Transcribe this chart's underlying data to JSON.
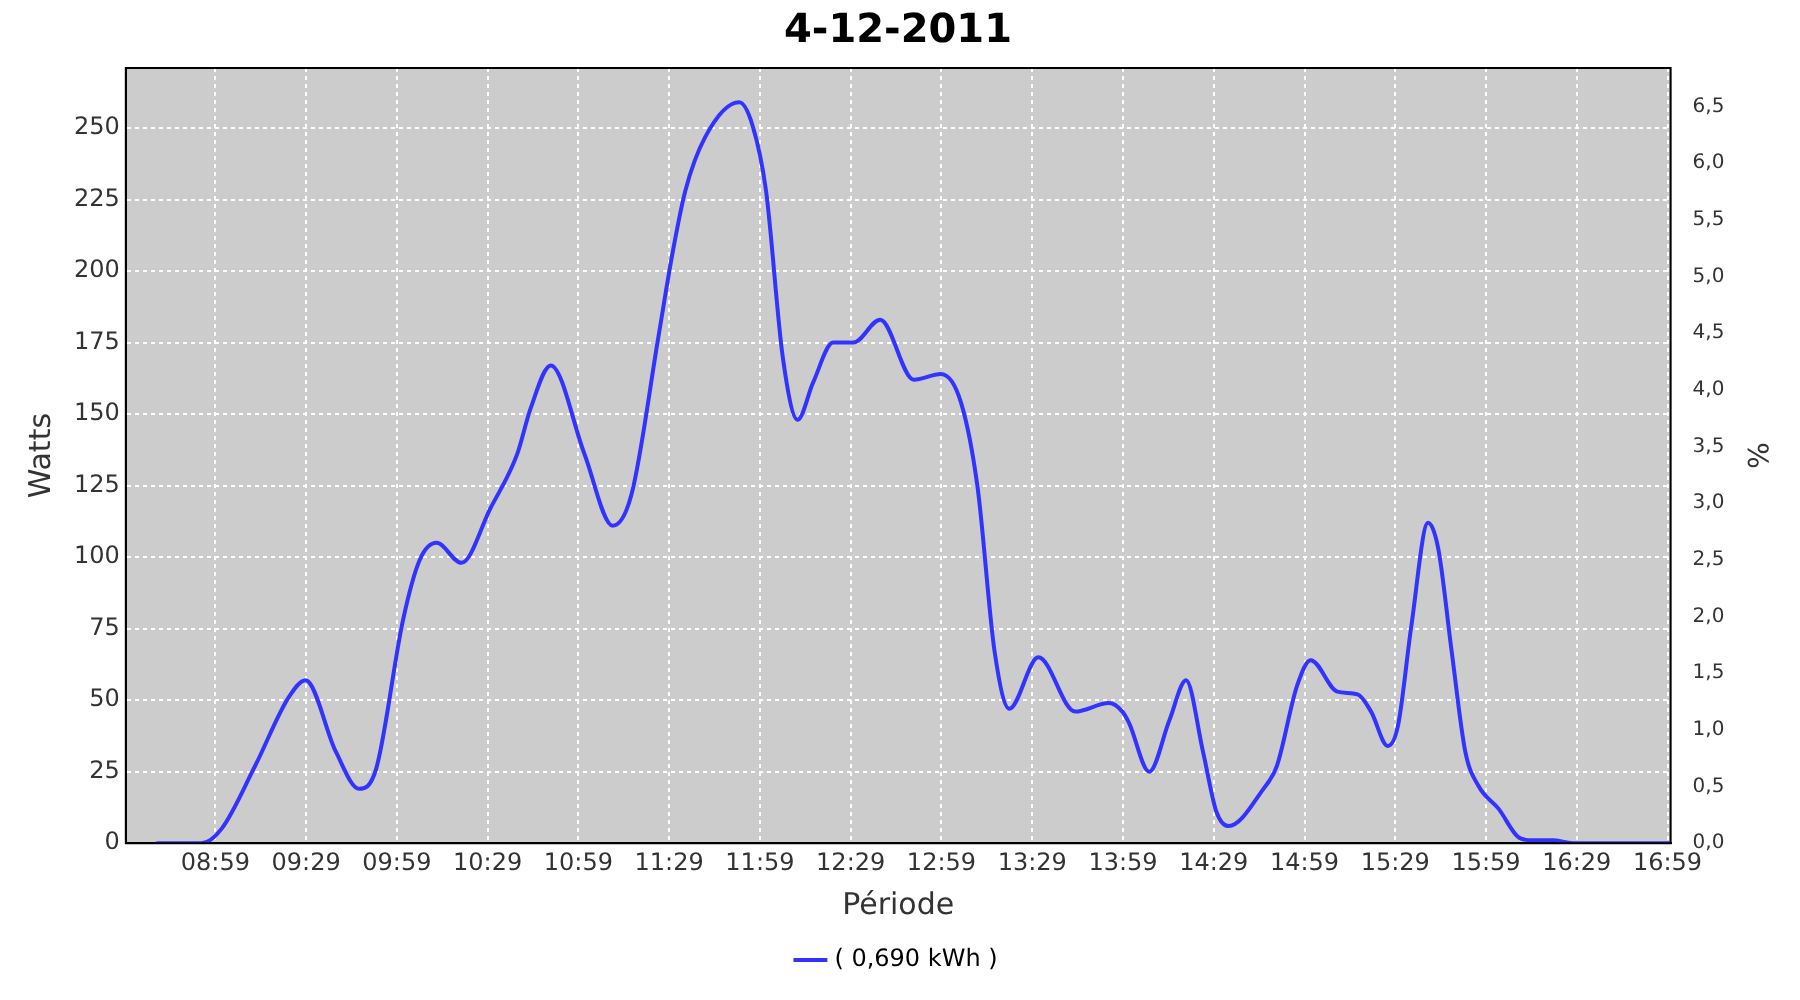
{
  "chart_data": {
    "type": "line",
    "title": "4-12-2011",
    "xlabel": "Période",
    "ylabel": "Watts",
    "y2label": "%",
    "x": [
      8.664,
      8.906,
      9.017,
      9.202,
      9.387,
      9.48,
      9.647,
      9.776,
      9.869,
      10.017,
      10.109,
      10.202,
      10.339,
      10.498,
      10.646,
      10.72,
      10.831,
      11.017,
      11.172,
      11.276,
      11.424,
      11.498,
      11.572,
      11.683,
      11.869,
      11.942,
      12.017,
      12.109,
      12.191,
      12.276,
      12.387,
      12.498,
      12.646,
      12.831,
      12.98,
      13.091,
      13.183,
      13.276,
      13.357,
      13.517,
      13.72,
      13.906,
      13.98,
      14.017,
      14.128,
      14.239,
      14.331,
      14.424,
      14.498,
      14.565,
      14.757,
      14.831,
      14.942,
      15.017,
      15.164,
      15.276,
      15.35,
      15.442,
      15.498,
      15.572,
      15.664,
      15.72,
      15.794,
      15.869,
      15.942,
      16.053,
      16.164,
      16.239,
      16.35,
      16.461,
      16.99
    ],
    "series": [
      {
        "name": "( 0,690 kWh )",
        "color": "#3333ff",
        "values": [
          0,
          0,
          5,
          27,
          51,
          57,
          32,
          19,
          26,
          78,
          99,
          105,
          98,
          117,
          136,
          152,
          167,
          136,
          111,
          122,
          177,
          205,
          228,
          247,
          259,
          251,
          228,
          170,
          148,
          161,
          175,
          175,
          183,
          162,
          164,
          154,
          124,
          67,
          47,
          65,
          46,
          49,
          46,
          42,
          25,
          43,
          57,
          32,
          11,
          6,
          19,
          27,
          55,
          64,
          53,
          52,
          46,
          34,
          41,
          76,
          112,
          103,
          67,
          32,
          20,
          12,
          2,
          1,
          1,
          0,
          0
        ]
      }
    ],
    "xlim": [
      8.49,
      17.0
    ],
    "xticks": [
      {
        "value": 8.9833,
        "label": "08:59"
      },
      {
        "value": 9.4833,
        "label": "09:29"
      },
      {
        "value": 9.9833,
        "label": "09:59"
      },
      {
        "value": 10.4833,
        "label": "10:29"
      },
      {
        "value": 10.9833,
        "label": "10:59"
      },
      {
        "value": 11.4833,
        "label": "11:29"
      },
      {
        "value": 11.9833,
        "label": "11:59"
      },
      {
        "value": 12.4833,
        "label": "12:29"
      },
      {
        "value": 12.9833,
        "label": "12:59"
      },
      {
        "value": 13.4833,
        "label": "13:29"
      },
      {
        "value": 13.9833,
        "label": "13:59"
      },
      {
        "value": 14.4833,
        "label": "14:29"
      },
      {
        "value": 14.9833,
        "label": "14:59"
      },
      {
        "value": 15.4833,
        "label": "15:29"
      },
      {
        "value": 15.9833,
        "label": "15:59"
      },
      {
        "value": 16.4833,
        "label": "16:29"
      },
      {
        "value": 16.9833,
        "label": "16:59"
      }
    ],
    "ylim": [
      0,
      271
    ],
    "yticks": [
      0,
      25,
      50,
      75,
      100,
      125,
      150,
      175,
      200,
      225,
      250
    ],
    "y2lim": [
      0,
      6.84
    ],
    "y2ticks": [
      {
        "value": 0,
        "label": "0,0"
      },
      {
        "value": 0.5,
        "label": "0,5"
      },
      {
        "value": 1,
        "label": "1,0"
      },
      {
        "value": 1.5,
        "label": "1,5"
      },
      {
        "value": 2,
        "label": "2,0"
      },
      {
        "value": 2.5,
        "label": "2,5"
      },
      {
        "value": 3,
        "label": "3,0"
      },
      {
        "value": 3.5,
        "label": "3,5"
      },
      {
        "value": 4,
        "label": "4,0"
      },
      {
        "value": 4.5,
        "label": "4,5"
      },
      {
        "value": 5,
        "label": "5,0"
      },
      {
        "value": 5.5,
        "label": "5,5"
      },
      {
        "value": 6,
        "label": "6,0"
      },
      {
        "value": 6.5,
        "label": "6,5"
      }
    ],
    "grid": true,
    "legend": "bottom",
    "marker": "none",
    "line_style": "solid"
  }
}
